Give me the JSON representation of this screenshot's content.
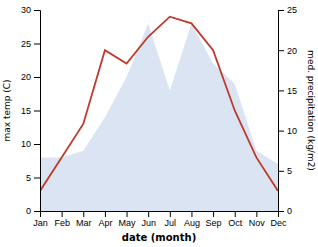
{
  "chart_data": {
    "type": "line",
    "xlabel": "date (month)",
    "ylabel": "max temp (C)",
    "y2label": "med. precipitation (kg/m2)",
    "categories": [
      "Jan",
      "Feb",
      "Mar",
      "Apr",
      "May",
      "Jun",
      "Jul",
      "Aug",
      "Sep",
      "Oct",
      "Nov",
      "Dec"
    ],
    "series": [
      {
        "type": "area",
        "color": "#b8c9e8",
        "values": [
          8,
          8,
          9,
          14,
          20,
          28,
          18,
          28,
          22,
          19,
          9,
          7
        ]
      },
      {
        "type": "line",
        "color": "#c0392b",
        "values": [
          3,
          8,
          13,
          24,
          22,
          26,
          29,
          28,
          24,
          15,
          8,
          3
        ]
      }
    ],
    "ylim": [
      0,
      30
    ],
    "yticks": [
      0,
      5,
      10,
      15,
      20,
      25,
      30
    ],
    "y2lim": [
      0,
      25
    ],
    "y2ticks": [
      0,
      5,
      10,
      15,
      20,
      25
    ],
    "grid": false
  }
}
